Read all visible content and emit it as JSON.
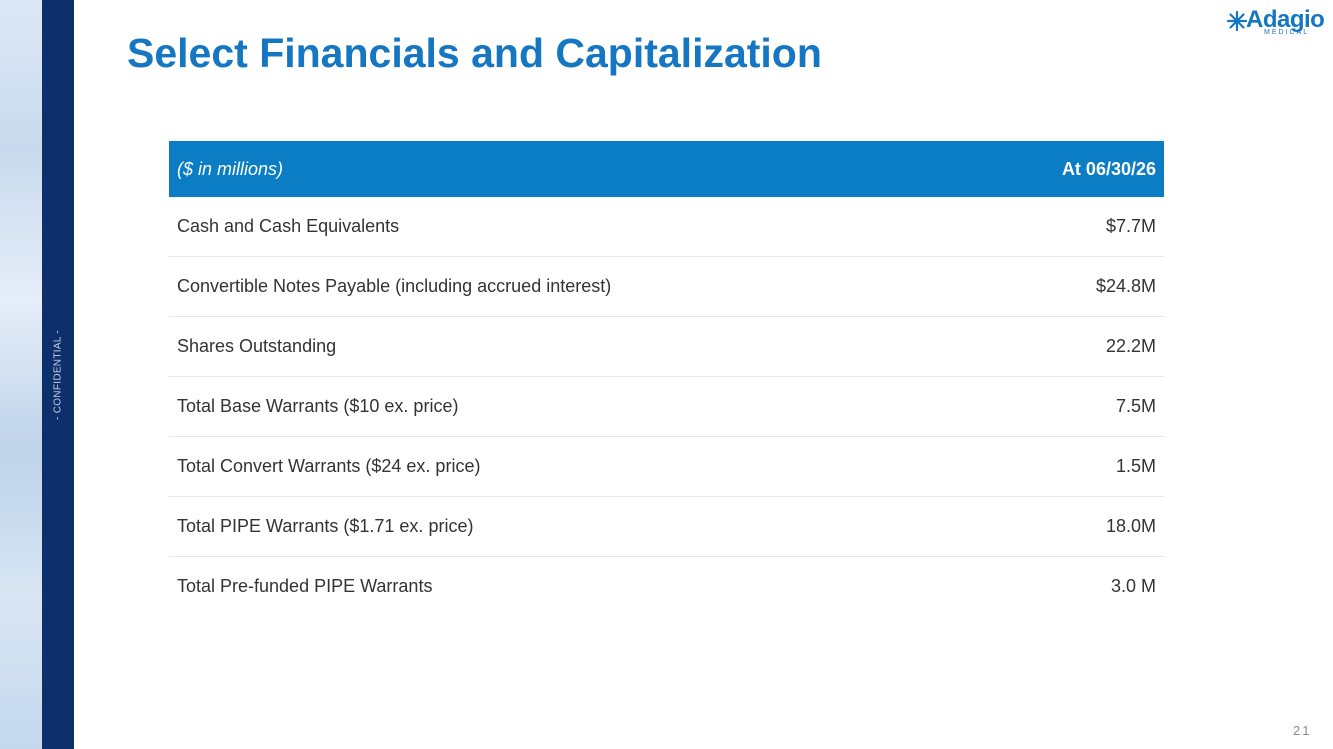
{
  "header": {
    "title": "Select Financials and Capitalization",
    "logo": {
      "name": "Adagio",
      "tagline": "MEDICAL"
    }
  },
  "sidebar": {
    "label": "- CONFIDENTIAL -"
  },
  "table": {
    "columns": [
      "($ in millions)",
      "At 06/30/26"
    ],
    "rows": [
      [
        "Cash and Cash Equivalents",
        "$7.7M"
      ],
      [
        "Convertible Notes Payable (including accrued interest)",
        "$24.8M"
      ],
      [
        "Shares Outstanding",
        "22.2M"
      ],
      [
        "Total Base Warrants ($10 ex. price)",
        "7.5M"
      ],
      [
        "Total Convert Warrants ($24 ex. price)",
        "1.5M"
      ],
      [
        "Total PIPE Warrants ($1.71 ex. price)",
        "18.0M"
      ],
      [
        "Total Pre-funded PIPE Warrants",
        "3.0 M"
      ]
    ]
  },
  "footer": {
    "page_number": "21"
  }
}
